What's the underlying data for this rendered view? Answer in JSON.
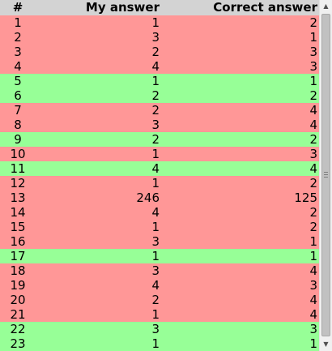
{
  "table": {
    "headers": {
      "number": "#",
      "my_answer": "My answer",
      "correct_answer": "Correct answer"
    },
    "colors": {
      "header_bg": "#d3d3d3",
      "wrong_bg": "#ff9797",
      "correct_bg": "#97ff97"
    },
    "rows": [
      {
        "number": "1",
        "my_answer": "1",
        "correct_answer": "2",
        "status": "wrong"
      },
      {
        "number": "2",
        "my_answer": "3",
        "correct_answer": "1",
        "status": "wrong"
      },
      {
        "number": "3",
        "my_answer": "2",
        "correct_answer": "3",
        "status": "wrong"
      },
      {
        "number": "4",
        "my_answer": "4",
        "correct_answer": "3",
        "status": "wrong"
      },
      {
        "number": "5",
        "my_answer": "1",
        "correct_answer": "1",
        "status": "correct"
      },
      {
        "number": "6",
        "my_answer": "2",
        "correct_answer": "2",
        "status": "correct"
      },
      {
        "number": "7",
        "my_answer": "2",
        "correct_answer": "4",
        "status": "wrong"
      },
      {
        "number": "8",
        "my_answer": "3",
        "correct_answer": "4",
        "status": "wrong"
      },
      {
        "number": "9",
        "my_answer": "2",
        "correct_answer": "2",
        "status": "correct"
      },
      {
        "number": "10",
        "my_answer": "1",
        "correct_answer": "3",
        "status": "wrong"
      },
      {
        "number": "11",
        "my_answer": "4",
        "correct_answer": "4",
        "status": "correct"
      },
      {
        "number": "12",
        "my_answer": "1",
        "correct_answer": "2",
        "status": "wrong"
      },
      {
        "number": "13",
        "my_answer": "246",
        "correct_answer": "125",
        "status": "wrong"
      },
      {
        "number": "14",
        "my_answer": "4",
        "correct_answer": "2",
        "status": "wrong"
      },
      {
        "number": "15",
        "my_answer": "1",
        "correct_answer": "2",
        "status": "wrong"
      },
      {
        "number": "16",
        "my_answer": "3",
        "correct_answer": "1",
        "status": "wrong"
      },
      {
        "number": "17",
        "my_answer": "1",
        "correct_answer": "1",
        "status": "correct"
      },
      {
        "number": "18",
        "my_answer": "3",
        "correct_answer": "4",
        "status": "wrong"
      },
      {
        "number": "19",
        "my_answer": "4",
        "correct_answer": "3",
        "status": "wrong"
      },
      {
        "number": "20",
        "my_answer": "2",
        "correct_answer": "4",
        "status": "wrong"
      },
      {
        "number": "21",
        "my_answer": "1",
        "correct_answer": "4",
        "status": "wrong"
      },
      {
        "number": "22",
        "my_answer": "3",
        "correct_answer": "3",
        "status": "correct"
      },
      {
        "number": "23",
        "my_answer": "1",
        "correct_answer": "1",
        "status": "correct"
      }
    ]
  },
  "scrollbar": {
    "up_icon": "triangle-up-icon",
    "down_icon": "triangle-down-icon",
    "grip_icon": "grip-lines-icon"
  }
}
